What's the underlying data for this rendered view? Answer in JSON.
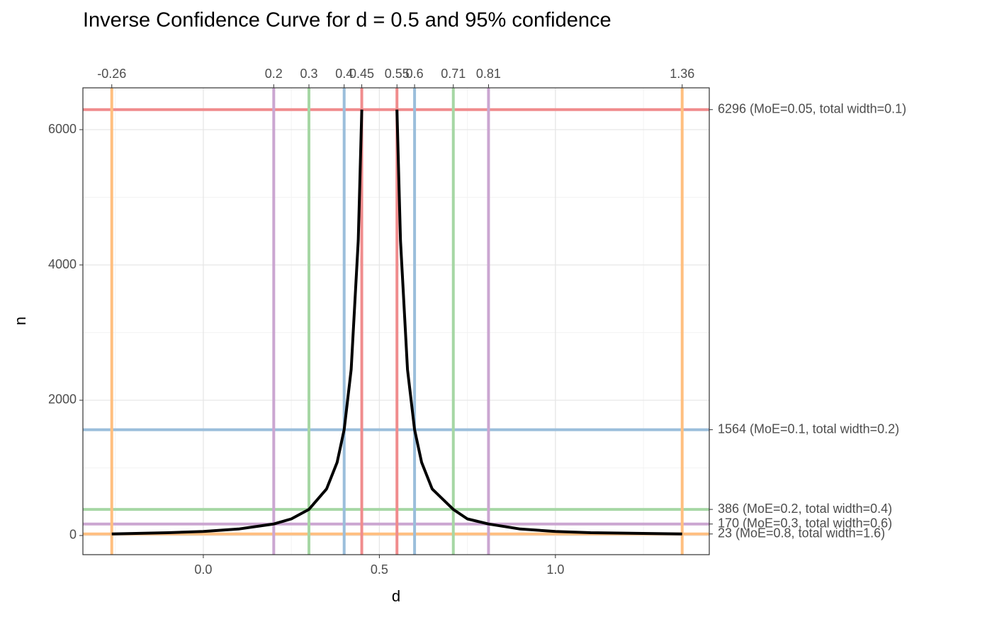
{
  "chart_data": {
    "type": "line",
    "title": "Inverse Confidence Curve for d = 0.5 and 95% confidence",
    "x_label": "d",
    "y_label": "n",
    "x": [
      -0.26,
      -0.1,
      0,
      0.1,
      0.2,
      0.25,
      0.3,
      0.35,
      0.38,
      0.4,
      0.42,
      0.44,
      0.45,
      null,
      0.55,
      0.56,
      0.58,
      0.6,
      0.62,
      0.65,
      0.71,
      0.75,
      0.81,
      0.9,
      1.0,
      1.1,
      1.36
    ],
    "series": [
      {
        "color": "#000000",
        "values": [
          23,
          42,
          60,
          96,
          170,
          246,
          386,
          689,
          1083,
          1564,
          2453,
          4361,
          6296,
          null,
          6296,
          4361,
          2453,
          1564,
          1083,
          689,
          386,
          246,
          170,
          96,
          60,
          42,
          23
        ]
      }
    ],
    "xlim": [
      -0.342,
      1.437
    ],
    "ylim": [
      -283,
      6618
    ],
    "xticks": [
      {
        "value": 0,
        "label": "0.0"
      },
      0.5,
      {
        "value": 1,
        "label": "1.0"
      }
    ],
    "yticks": [
      0,
      2000,
      4000,
      6000
    ],
    "x_minor_ticks": [
      -0.25,
      0.25,
      0.75,
      1.25
    ],
    "y_minor_ticks": [
      1000,
      3000,
      5000
    ],
    "x2ticks": [
      {
        "value": -0.26,
        "label": "-0.26",
        "color": "#FFBF80"
      },
      {
        "value": 0.2,
        "label": "0.2",
        "color": "#CBA6D1"
      },
      {
        "value": 0.3,
        "label": "0.3",
        "color": "#A6D7A4"
      },
      {
        "value": 0.4,
        "label": "0.4",
        "color": "#9BBEDB"
      },
      {
        "value": 0.45,
        "label": "0.45",
        "color": "#F08C8D"
      },
      {
        "value": 0.55,
        "label": "0.55",
        "color": "#F08C8D"
      },
      {
        "value": 0.6,
        "label": "0.6",
        "color": "#9BBEDB"
      },
      {
        "value": 0.71,
        "label": "0.71",
        "color": "#A6D7A4"
      },
      {
        "value": 0.81,
        "label": "0.81",
        "color": "#CBA6D1"
      },
      {
        "value": 1.36,
        "label": "1.36",
        "color": "#FFBF80"
      }
    ],
    "y2ticks": [
      {
        "value": 6296,
        "label": "6296 (MoE=0.05, total width=0.1)",
        "color": "#F08C8D"
      },
      {
        "value": 1564,
        "label": "1564 (MoE=0.1, total width=0.2)",
        "color": "#9BBEDB"
      },
      {
        "value": 386,
        "label": "386 (MoE=0.2, total width=0.4)",
        "color": "#A6D7A4"
      },
      {
        "value": 170,
        "label": "170 (MoE=0.3, total width=0.6)",
        "color": "#CBA6D1"
      },
      {
        "value": 23,
        "label": "23 (MoE=0.8, total width=1.6)",
        "color": "#FFBF80"
      }
    ],
    "grid": true
  }
}
